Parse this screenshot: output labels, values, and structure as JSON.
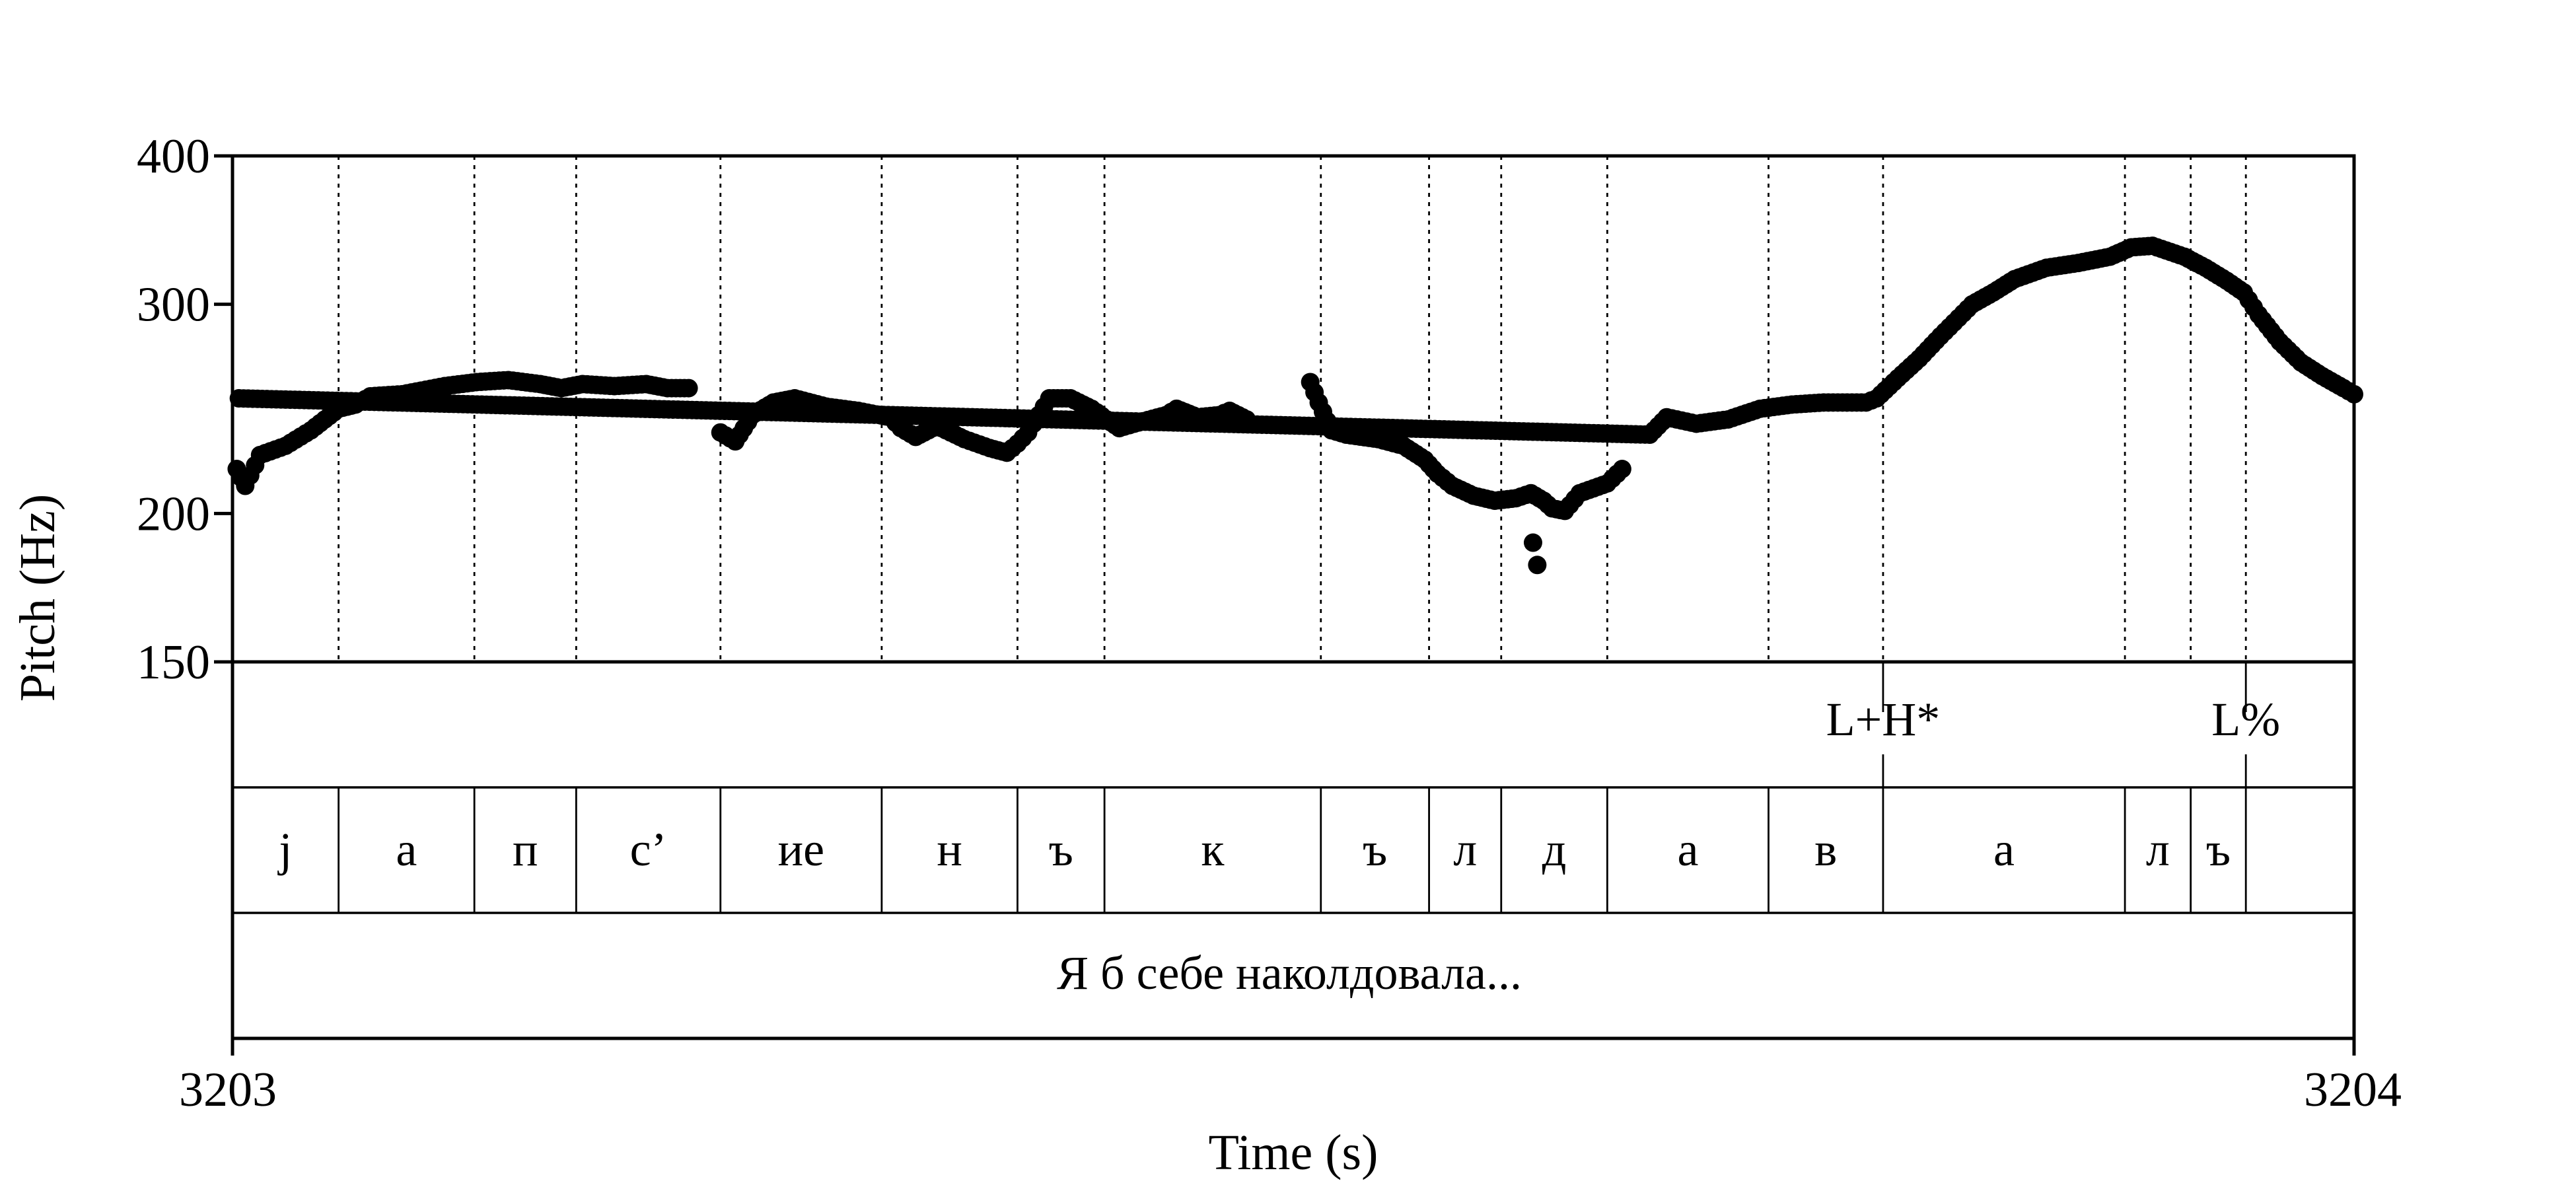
{
  "chart_data": {
    "type": "scatter",
    "xlabel": "Time (s)",
    "ylabel": "Pitch (Hz)",
    "xlim": [
      3203,
      3204
    ],
    "ylim": [
      150,
      400
    ],
    "yscale": "log",
    "x_ticks": [
      "3203",
      "3204"
    ],
    "y_ticks": [
      {
        "value": 400,
        "label": "400"
      },
      {
        "value": 300,
        "label": "300"
      },
      {
        "value": 200,
        "label": "200"
      },
      {
        "value": 150,
        "label": "150"
      }
    ],
    "pitch_segments": [
      [
        [
          3203.002,
          218
        ],
        [
          3203.006,
          211
        ],
        [
          3203.013,
          224
        ],
        [
          3203.025,
          228
        ],
        [
          3203.037,
          235
        ],
        [
          3203.05,
          245
        ],
        [
          3203.058,
          247
        ],
        [
          3203.065,
          251
        ],
        [
          3203.08,
          252
        ],
        [
          3203.1,
          256
        ],
        [
          3203.115,
          258
        ],
        [
          3203.13,
          259
        ],
        [
          3203.145,
          257
        ],
        [
          3203.155,
          255
        ],
        [
          3203.165,
          257
        ],
        [
          3203.18,
          256
        ],
        [
          3203.195,
          257
        ],
        [
          3203.205,
          255
        ],
        [
          3203.215,
          255
        ]
      ],
      [
        [
          3203.23,
          234
        ],
        [
          3203.237,
          230
        ],
        [
          3203.245,
          242
        ],
        [
          3203.255,
          248
        ],
        [
          3203.265,
          250
        ],
        [
          3203.28,
          246
        ],
        [
          3203.295,
          244
        ],
        [
          3203.31,
          241
        ],
        [
          3203.315,
          236
        ],
        [
          3203.322,
          232
        ],
        [
          3203.332,
          237
        ],
        [
          3203.345,
          231
        ],
        [
          3203.357,
          227
        ],
        [
          3203.365,
          225
        ],
        [
          3203.37,
          229
        ],
        [
          3203.375,
          234
        ],
        [
          3203.38,
          242
        ],
        [
          3203.385,
          250
        ],
        [
          3203.395,
          250
        ],
        [
          3203.405,
          245
        ],
        [
          3203.412,
          240
        ],
        [
          3203.418,
          236
        ]
      ],
      [
        [
          3203.418,
          236
        ],
        [
          3203.425,
          238
        ],
        [
          3203.44,
          242
        ],
        [
          3203.445,
          245
        ],
        [
          3203.455,
          241
        ],
        [
          3203.465,
          242
        ],
        [
          3203.47,
          244
        ],
        [
          3203.478,
          240
        ]
      ],
      [
        [
          3203.508,
          258
        ],
        [
          3203.512,
          248
        ],
        [
          3203.518,
          235
        ],
        [
          3203.525,
          233
        ],
        [
          3203.54,
          231
        ],
        [
          3203.552,
          228
        ],
        [
          3203.562,
          222
        ],
        [
          3203.568,
          216
        ],
        [
          3203.575,
          211
        ],
        [
          3203.585,
          207
        ],
        [
          3203.595,
          205
        ],
        [
          3203.605,
          206
        ],
        [
          3203.612,
          208
        ],
        [
          3203.618,
          205
        ],
        [
          3203.622,
          202
        ],
        [
          3203.628,
          201
        ],
        [
          3203.635,
          208
        ],
        [
          3203.648,
          212
        ],
        [
          3203.655,
          218
        ]
      ],
      [
        [
          3203.668,
          233
        ],
        [
          3203.676,
          241
        ],
        [
          3203.69,
          238
        ],
        [
          3203.705,
          240
        ],
        [
          3203.72,
          245
        ],
        [
          3203.735,
          247
        ],
        [
          3203.75,
          248
        ],
        [
          3203.77,
          248
        ],
        [
          3203.775,
          250
        ],
        [
          3203.785,
          260
        ],
        [
          3203.795,
          270
        ],
        [
          3203.805,
          282
        ],
        [
          3203.82,
          300
        ],
        [
          3203.83,
          307
        ],
        [
          3203.84,
          315
        ],
        [
          3203.855,
          322
        ],
        [
          3203.87,
          325
        ],
        [
          3203.885,
          329
        ],
        [
          3203.895,
          335
        ],
        [
          3203.905,
          336
        ],
        [
          3203.92,
          329
        ],
        [
          3203.93,
          322
        ],
        [
          3203.94,
          314
        ],
        [
          3203.948,
          307
        ],
        [
          3203.955,
          294
        ],
        [
          3203.965,
          279
        ],
        [
          3203.975,
          268
        ],
        [
          3203.985,
          261
        ],
        [
          3203.995,
          255
        ],
        [
          3204.0,
          252
        ],
        [
          3203.003,
          250
        ]
      ]
    ],
    "outlier_points": [
      [
        3203.613,
        189
      ],
      [
        3203.615,
        181
      ]
    ],
    "phone_boundaries": [
      3203.05,
      3203.114,
      3203.162,
      3203.23,
      3203.306,
      3203.37,
      3203.411,
      3203.513,
      3203.564,
      3203.598,
      3203.648,
      3203.724,
      3203.778,
      3203.892,
      3203.923,
      3203.949
    ],
    "phones": [
      {
        "label": "j",
        "start": 3203.0,
        "end": 3203.05
      },
      {
        "label": "а",
        "start": 3203.05,
        "end": 3203.114
      },
      {
        "label": "п",
        "start": 3203.114,
        "end": 3203.162
      },
      {
        "label": "с’",
        "start": 3203.162,
        "end": 3203.23
      },
      {
        "label": "ие",
        "start": 3203.23,
        "end": 3203.306
      },
      {
        "label": "н",
        "start": 3203.306,
        "end": 3203.37
      },
      {
        "label": "ъ",
        "start": 3203.37,
        "end": 3203.411
      },
      {
        "label": "к",
        "start": 3203.411,
        "end": 3203.513
      },
      {
        "label": "ъ",
        "start": 3203.513,
        "end": 3203.564
      },
      {
        "label": "л",
        "start": 3203.564,
        "end": 3203.598
      },
      {
        "label": "д",
        "start": 3203.598,
        "end": 3203.648
      },
      {
        "label": "а",
        "start": 3203.648,
        "end": 3203.724
      },
      {
        "label": "в",
        "start": 3203.724,
        "end": 3203.778
      },
      {
        "label": "а",
        "start": 3203.778,
        "end": 3203.892
      },
      {
        "label": "л",
        "start": 3203.892,
        "end": 3203.923
      },
      {
        "label": "ъ",
        "start": 3203.923,
        "end": 3203.949
      }
    ],
    "tones": [
      {
        "label": "L+H*",
        "time": 3203.778
      },
      {
        "label": "L%",
        "time": 3203.949
      }
    ],
    "utterance": "Я б себе наколдовала..."
  }
}
